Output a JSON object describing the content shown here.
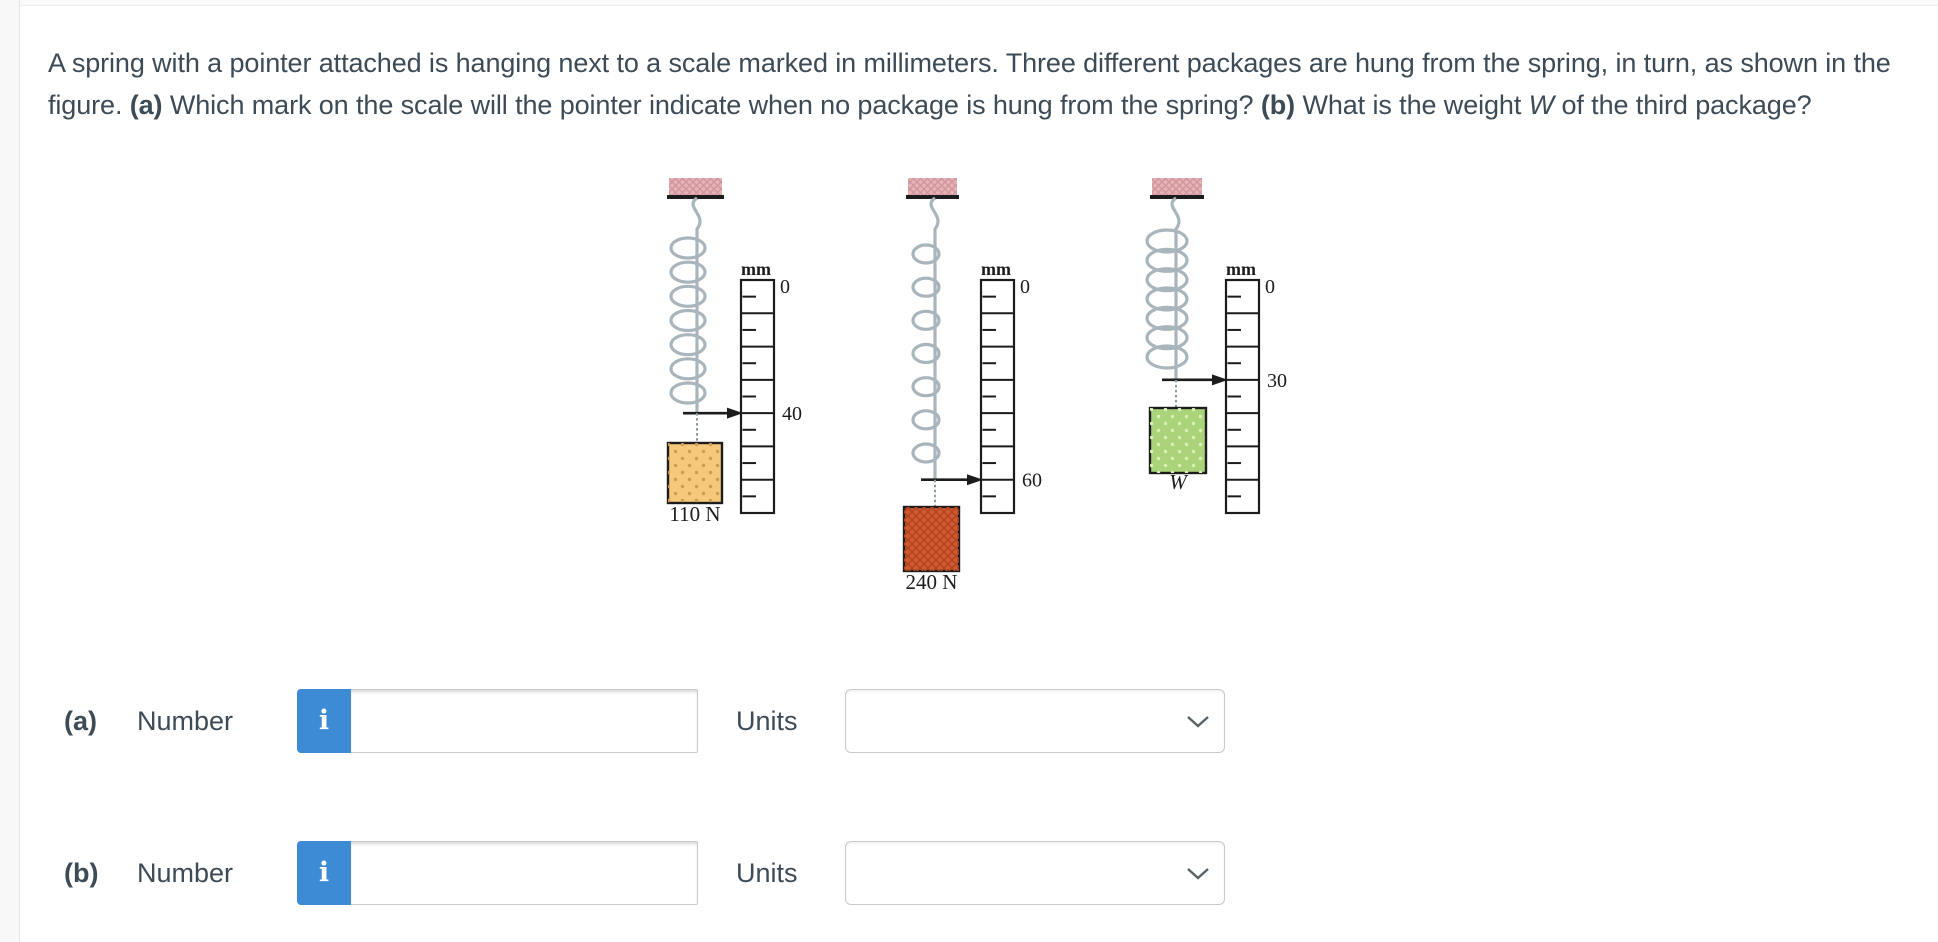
{
  "question": {
    "segments": [
      {
        "t": "A spring with a pointer attached is hanging next to a scale marked in millimeters. Three different packages are hung from the spring, in turn, as shown in the figure. "
      },
      {
        "t": "(a)",
        "b": 1
      },
      {
        "t": " Which mark on the scale will the pointer indicate when no package is hung from the spring? "
      },
      {
        "t": "(b)",
        "b": 1
      },
      {
        "t": " What is the weight "
      },
      {
        "t": "W",
        "i": 1
      },
      {
        "t": " of the third package?"
      }
    ]
  },
  "figure": {
    "scale_unit_label": "mm",
    "scale_zero_label": "0",
    "scale_range_mm": [
      0,
      70
    ],
    "major_tick_mm": 10,
    "minor_tick_mm": 5,
    "setups": [
      {
        "package_label": "110 N",
        "pointer_mm": 40,
        "pointer_label": "40",
        "package_color": "#f6c87b",
        "texture": "dots",
        "texture_color": "#cf9b54",
        "label_italic": false
      },
      {
        "package_label": "240 N",
        "pointer_mm": 60,
        "pointer_label": "60",
        "package_color": "#d25a33",
        "texture": "cross",
        "texture_color": "#b3461f",
        "label_italic": false
      },
      {
        "package_label": "W",
        "pointer_mm": 30,
        "pointer_label": "30",
        "package_color": "#aad47a",
        "texture": "dots",
        "texture_color": "#d8efb6",
        "label_italic": true
      }
    ],
    "colors": {
      "ceiling": "#e9b2b2",
      "ceiling_hatch": "#cc93a0",
      "spring": "#a9b5bc",
      "ink": "#1c1c1c",
      "string": "#8b989e"
    }
  },
  "answers": [
    {
      "part_label": "(a)",
      "number_label": "Number",
      "info_glyph": "i",
      "number_value": "",
      "units_label": "Units",
      "units_value": ""
    },
    {
      "part_label": "(b)",
      "number_label": "Number",
      "info_glyph": "i",
      "number_value": "",
      "units_label": "Units",
      "units_value": ""
    }
  ],
  "colors": {
    "accent_blue": "#3d8bd4",
    "text": "#3d4b57"
  }
}
